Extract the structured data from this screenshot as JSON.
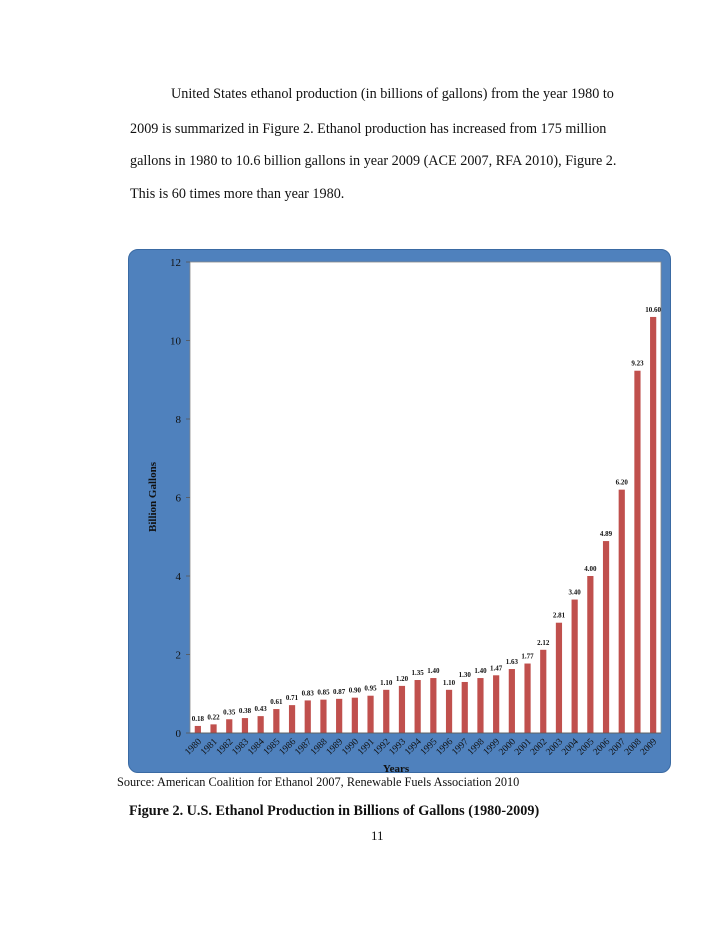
{
  "text": {
    "line1": "United States ethanol production (in billions of gallons) from the year 1980 to",
    "line2": "2009 is summarized in Figure 2.  Ethanol production has increased from 175 million",
    "line3": "gallons in 1980 to 10.6 billion gallons in year 2009 (ACE 2007, RFA 2010), Figure 2.",
    "line4": "This is 60 times more than year 1980.",
    "source": "Source: American Coalition for Ethanol 2007, Renewable Fuels Association 2010",
    "caption": "Figure 2. U.S. Ethanol Production in Billions of Gallons (1980-2009)",
    "page_number": "11"
  },
  "chart_data": {
    "type": "bar",
    "title": "",
    "xlabel": "Years",
    "ylabel": "Billion Gallons",
    "ylim": [
      0,
      12
    ],
    "yticks": [
      0,
      2,
      4,
      6,
      8,
      10,
      12
    ],
    "grid": false,
    "legend": "none",
    "bar_color": "#c0504d",
    "frame_color": "#4f81bd",
    "categories": [
      "1980",
      "1981",
      "1982",
      "1983",
      "1984",
      "1985",
      "1986",
      "1987",
      "1988",
      "1989",
      "1990",
      "1991",
      "1992",
      "1993",
      "1994",
      "1995",
      "1996",
      "1997",
      "1998",
      "1999",
      "2000",
      "2001",
      "2002",
      "2003",
      "2004",
      "2005",
      "2006",
      "2007",
      "2008",
      "2009"
    ],
    "values": [
      0.18,
      0.22,
      0.35,
      0.38,
      0.43,
      0.61,
      0.71,
      0.83,
      0.85,
      0.87,
      0.9,
      0.95,
      1.1,
      1.2,
      1.35,
      1.4,
      1.1,
      1.3,
      1.4,
      1.47,
      1.63,
      1.77,
      2.12,
      2.81,
      3.4,
      4.0,
      4.89,
      6.2,
      9.23,
      10.6
    ],
    "data_labels": [
      "0.18",
      "0.22",
      "0.35",
      "0.38",
      "0.43",
      "0.61",
      "0.71",
      "0.83",
      "0.85",
      "0.87",
      "0.90",
      "0.95",
      "1.10",
      "1.20",
      "1.35",
      "1.40",
      "1.10",
      "1.30",
      "1.40",
      "1.47",
      "1.63",
      "1.77",
      "2.12",
      "2.81",
      "3.40",
      "4.00",
      "4.89",
      "6.20",
      "9.23",
      "10.60"
    ]
  }
}
